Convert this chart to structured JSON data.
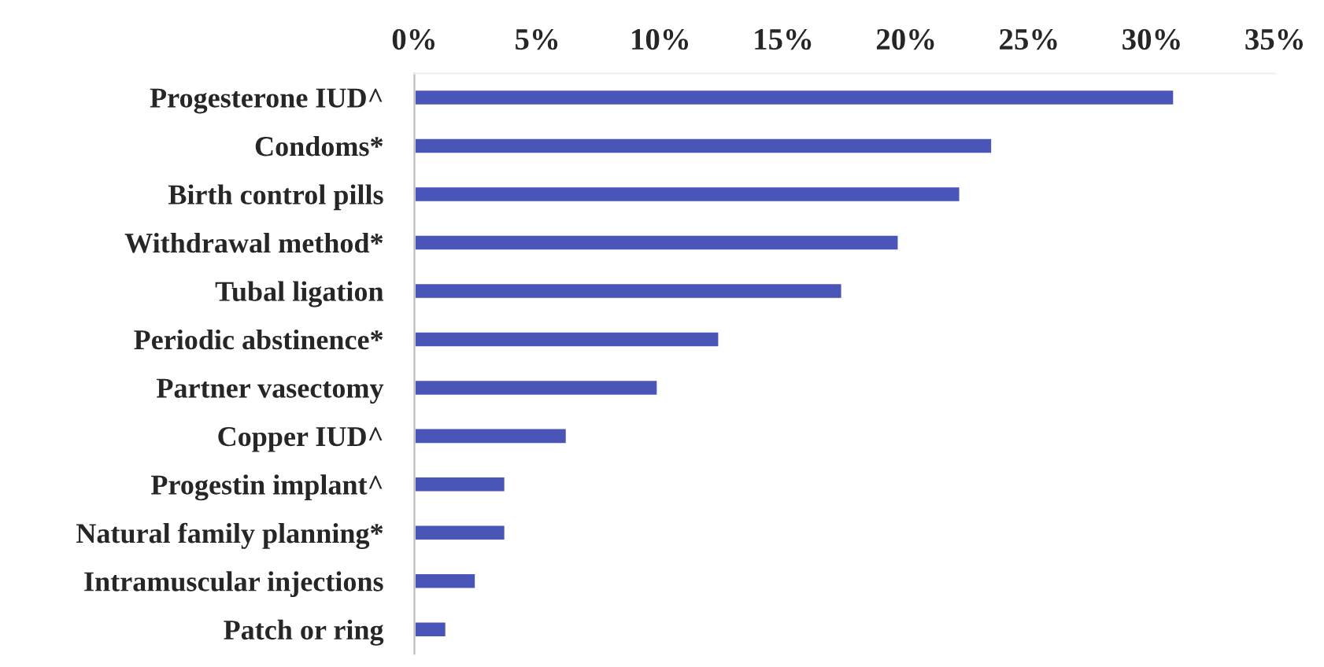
{
  "chart_data": {
    "type": "bar",
    "orientation": "horizontal",
    "categories": [
      "Progesterone IUD^",
      "Condoms*",
      "Birth control pills",
      "Withdrawal method*",
      "Tubal ligation",
      "Periodic abstinence*",
      "Partner vasectomy",
      "Copper IUD^",
      "Progestin implant^",
      "Natural family planning*",
      "Intramuscular injections",
      "Patch or ring"
    ],
    "values": [
      30.9,
      23.5,
      22.2,
      19.7,
      17.4,
      12.4,
      9.9,
      6.2,
      3.7,
      3.7,
      2.5,
      1.3
    ],
    "color": "#4a55b8",
    "xlim": [
      0,
      35
    ],
    "xticks": [
      {
        "value": 0,
        "label": "0%"
      },
      {
        "value": 5,
        "label": "5%"
      },
      {
        "value": 10,
        "label": "10%"
      },
      {
        "value": 15,
        "label": "15%"
      },
      {
        "value": 20,
        "label": "20%"
      },
      {
        "value": 25,
        "label": "25%"
      },
      {
        "value": 30,
        "label": "30%"
      },
      {
        "value": 35,
        "label": "35%"
      }
    ],
    "grid": false,
    "legend": false
  }
}
